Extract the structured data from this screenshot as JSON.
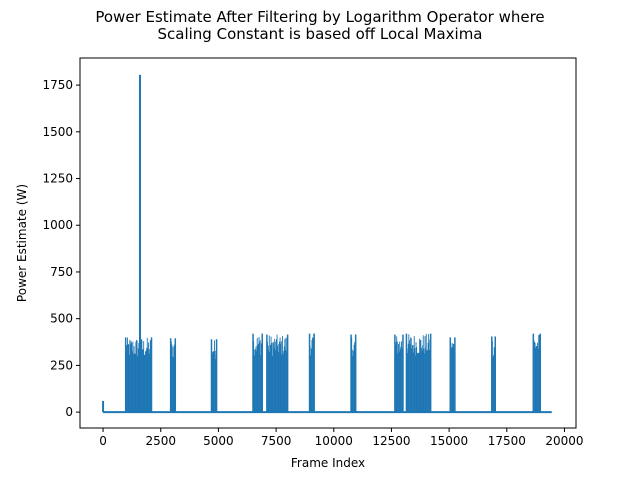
{
  "chart_data": {
    "type": "line",
    "title_line1": "Power Estimate After Filtering by Logarithm Operator where",
    "title_line2": "Scaling Constant is based off Local Maxima",
    "xlabel": "Frame Index",
    "ylabel": "Power Estimate (W)",
    "xlim": [
      -1000,
      20500
    ],
    "ylim": [
      -85,
      1895
    ],
    "x_ticks": [
      0,
      2500,
      5000,
      7500,
      10000,
      12500,
      15000,
      17500,
      20000
    ],
    "x_tick_labels": [
      "0",
      "2500",
      "5000",
      "7500",
      "10000",
      "12500",
      "15000",
      "17500",
      "20000"
    ],
    "y_ticks": [
      0,
      250,
      500,
      750,
      1000,
      1250,
      1500,
      1750
    ],
    "y_tick_labels": [
      "0",
      "250",
      "500",
      "750",
      "1000",
      "1250",
      "1500",
      "1750"
    ],
    "grid": false,
    "legend": "none",
    "color": "#1f77b4",
    "baseline": 0,
    "x_max": 19450,
    "peaks": [
      {
        "x": 0,
        "y": 60
      },
      {
        "x": 1600,
        "y": 1805
      }
    ],
    "bursts": [
      {
        "start": 980,
        "end": 2100,
        "peak": 400
      },
      {
        "start": 2930,
        "end": 3130,
        "peak": 395
      },
      {
        "start": 4700,
        "end": 4920,
        "peak": 390
      },
      {
        "start": 6500,
        "end": 6900,
        "peak": 420
      },
      {
        "start": 7100,
        "end": 8000,
        "peak": 415
      },
      {
        "start": 8950,
        "end": 9150,
        "peak": 420
      },
      {
        "start": 10750,
        "end": 10950,
        "peak": 415
      },
      {
        "start": 12650,
        "end": 13000,
        "peak": 415
      },
      {
        "start": 13150,
        "end": 14200,
        "peak": 420
      },
      {
        "start": 15050,
        "end": 15250,
        "peak": 400
      },
      {
        "start": 16850,
        "end": 17000,
        "peak": 405
      },
      {
        "start": 18650,
        "end": 18950,
        "peak": 420
      }
    ]
  }
}
